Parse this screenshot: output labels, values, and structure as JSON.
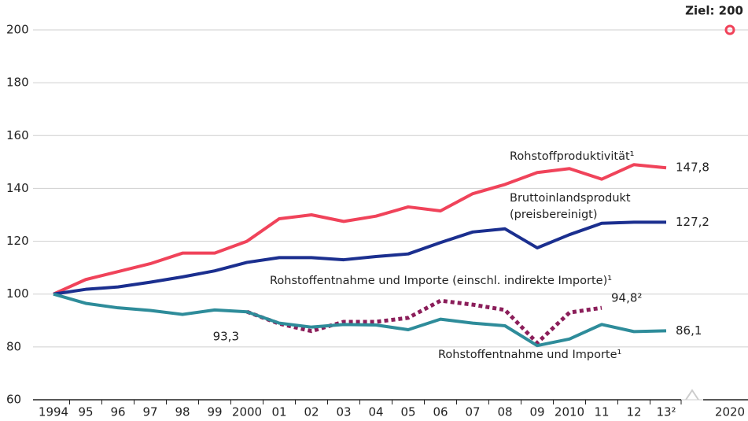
{
  "chart_data": {
    "type": "line",
    "categories": [
      "1994",
      "95",
      "96",
      "97",
      "98",
      "99",
      "2000",
      "01",
      "02",
      "03",
      "04",
      "05",
      "06",
      "07",
      "08",
      "09",
      "2010",
      "11",
      "12",
      "13²",
      "2020"
    ],
    "ylim": [
      60,
      200
    ],
    "yticks": [
      60,
      80,
      100,
      120,
      140,
      160,
      180,
      200
    ],
    "grid": true,
    "series": [
      {
        "name": "Rohstoffproduktivität¹",
        "color": "#f0435a",
        "style": "solid",
        "values": [
          100,
          105.5,
          108.5,
          111.5,
          115.5,
          115.5,
          120,
          128.5,
          130,
          127.5,
          129.5,
          133,
          131.5,
          138,
          141.5,
          146,
          147.5,
          143.5,
          149,
          147.8,
          null
        ],
        "value_labels": [
          null,
          null,
          null,
          null,
          null,
          null,
          null,
          null,
          null,
          null,
          null,
          null,
          null,
          null,
          null,
          null,
          null,
          null,
          null,
          "147,8",
          null
        ]
      },
      {
        "name": "Bruttoinlandsprodukt (preisbereinigt)",
        "color": "#1b2f8f",
        "style": "solid",
        "values": [
          100,
          101.8,
          102.7,
          104.5,
          106.5,
          108.8,
          112,
          113.8,
          113.8,
          113,
          114.2,
          115.2,
          119.5,
          123.5,
          124.7,
          117.5,
          122.5,
          126.8,
          127.2,
          127.2,
          null
        ],
        "value_labels": [
          null,
          null,
          null,
          null,
          null,
          null,
          null,
          null,
          null,
          null,
          null,
          null,
          null,
          null,
          null,
          null,
          null,
          null,
          null,
          "127,2",
          null
        ]
      },
      {
        "name": "Rohstoffentnahme und Importe (einschl. indirekte Importe)¹",
        "color": "#8b1e5a",
        "style": "dotted",
        "values": [
          null,
          null,
          null,
          null,
          null,
          null,
          93.3,
          88.8,
          86,
          89.5,
          89.5,
          91,
          97.5,
          96,
          94,
          81.5,
          93,
          94.8,
          null,
          null,
          null
        ],
        "value_labels": [
          null,
          null,
          null,
          null,
          null,
          null,
          "93,3",
          null,
          null,
          null,
          null,
          null,
          null,
          null,
          null,
          null,
          null,
          "94,8²",
          null,
          null,
          null
        ]
      },
      {
        "name": "Rohstoffentnahme und Importe¹",
        "color": "#2e8c9a",
        "style": "solid",
        "values": [
          100,
          96.5,
          94.8,
          93.8,
          92.3,
          94,
          93.3,
          89,
          87.5,
          88.5,
          88.3,
          86.5,
          90.5,
          89,
          88,
          80.5,
          83,
          88.5,
          85.8,
          86.1,
          null
        ],
        "value_labels": [
          null,
          null,
          null,
          null,
          null,
          null,
          null,
          null,
          null,
          null,
          null,
          null,
          null,
          null,
          null,
          null,
          null,
          null,
          null,
          "86,1",
          null
        ]
      }
    ],
    "target": {
      "label": "Ziel: 200",
      "value": 200,
      "color": "#f0435a"
    }
  }
}
